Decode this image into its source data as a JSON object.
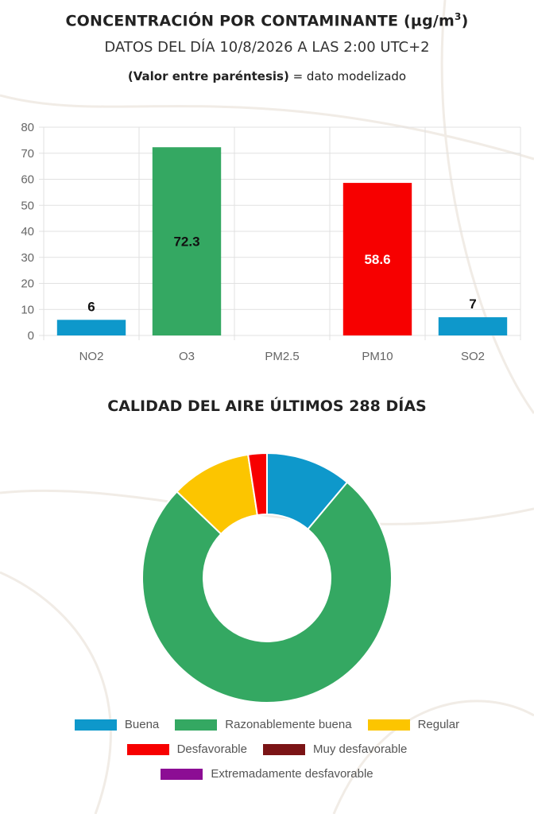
{
  "header": {
    "title_main": "CONCENTRACIÓN POR CONTAMINANTE (µg/m",
    "title_sup": "3",
    "title_end": ")",
    "subtitle": "DATOS DEL DÍA 10/8/2026 A LAS 2:00 UTC+2",
    "note_bold": "(Valor entre paréntesis)",
    "note_rest": " = dato modelizado"
  },
  "chart_data": [
    {
      "type": "bar",
      "title": "CONCENTRACIÓN POR CONTAMINANTE (µg/m3)",
      "categories": [
        "NO2",
        "O3",
        "PM2.5",
        "PM10",
        "SO2"
      ],
      "values": [
        6,
        72.3,
        null,
        58.6,
        7
      ],
      "value_labels": [
        "6",
        "72.3",
        "",
        "58.6",
        "7"
      ],
      "bar_colors": [
        "#0e98cb",
        "#34a862",
        "#34a862",
        "#f70000",
        "#0e98cb"
      ],
      "label_inside": [
        false,
        true,
        false,
        true,
        false
      ],
      "label_colors": [
        "#111111",
        "#111111",
        "#111111",
        "#ffffff",
        "#111111"
      ],
      "ylim": [
        0,
        80
      ],
      "yticks": [
        "0",
        "10",
        "20",
        "30",
        "40",
        "50",
        "60",
        "70",
        "80"
      ],
      "grid": true
    },
    {
      "type": "pie",
      "style": "donut",
      "title": "CALIDAD DEL AIRE ÚLTIMOS 288 DÍAS",
      "labels": [
        "Buena",
        "Razonablemente buena",
        "Regular",
        "Desfavorable",
        "Muy desfavorable",
        "Extremadamente desfavorable"
      ],
      "values": [
        32,
        219,
        30,
        7,
        0,
        0
      ],
      "colors": [
        "#0e98cb",
        "#34a862",
        "#fcc500",
        "#f70000",
        "#7b1416",
        "#8c0d94"
      ],
      "legend_position": "bottom"
    }
  ]
}
